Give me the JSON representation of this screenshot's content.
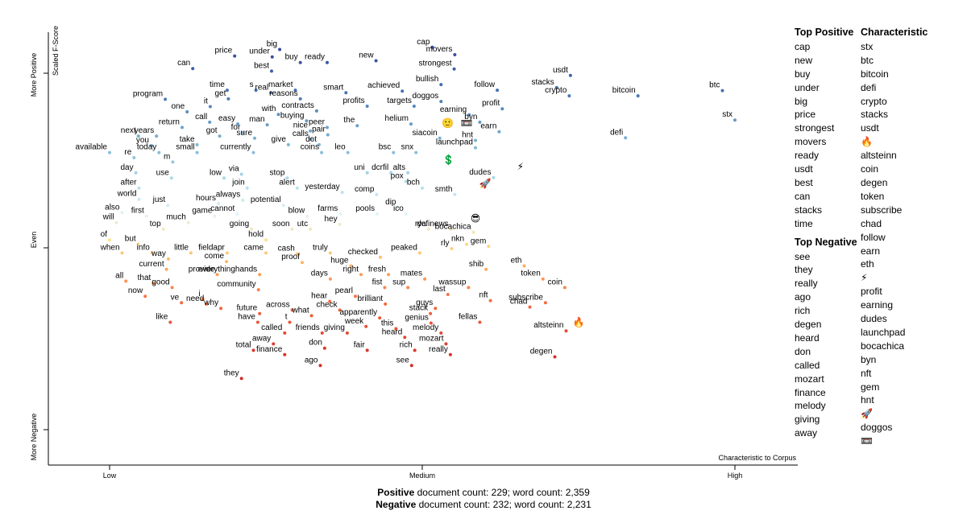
{
  "axes": {
    "y_title": "Scaled F-Score",
    "y_top": "More Positive",
    "y_mid": "Even",
    "y_bottom": "More Negative",
    "x_ticks": [
      "Low",
      "Medium",
      "High"
    ],
    "x_title": "Characteristic to Corpus"
  },
  "sidebar": {
    "pos_header": "Top Positive",
    "pos_terms": [
      "cap",
      "new",
      "buy",
      "under",
      "big",
      "price",
      "strongest",
      "movers",
      "ready",
      "usdt",
      "best",
      "can",
      "stacks",
      "time"
    ],
    "neg_header": "Top Negative",
    "neg_terms": [
      "see",
      "they",
      "really",
      "ago",
      "rich",
      "degen",
      "heard",
      "don",
      "called",
      "mozart",
      "finance",
      "melody",
      "giving",
      "away"
    ],
    "char_header": "Characteristic",
    "char_terms": [
      "stx",
      "btc",
      "bitcoin",
      "defi",
      "crypto",
      "stacks",
      "usdt",
      "🔥",
      "altsteinn",
      "coin",
      "degen",
      "token",
      "subscribe",
      "chad",
      "follow",
      "earn",
      "eth",
      "⚡",
      "profit",
      "earning",
      "dudes",
      "launchpad",
      "bocachica",
      "byn",
      "nft",
      "gem",
      "hnt",
      "🚀",
      "doggos",
      "📼"
    ]
  },
  "counts": {
    "pos_label": "Positive",
    "pos_text": " document count: 229; word count: 2,359",
    "neg_label": "Negative",
    "neg_text": " document count: 232; word count: 2,231"
  },
  "chart_data": {
    "type": "scatter",
    "xlabel": "Characteristic to Corpus",
    "ylabel": "Scaled F-Score",
    "x_range": [
      0,
      1
    ],
    "y_range": [
      0,
      1
    ],
    "x_ticks": {
      "Low": 0.0,
      "Medium": 0.5,
      "High": 1.0
    },
    "y_ticks": {
      "More Negative": 0.05,
      "Even": 0.5,
      "More Positive": 0.95
    },
    "terms": [
      {
        "t": "cap",
        "x": 0.516,
        "y": 0.965
      },
      {
        "t": "movers",
        "x": 0.552,
        "y": 0.948
      },
      {
        "t": "big",
        "x": 0.272,
        "y": 0.96
      },
      {
        "t": "price",
        "x": 0.2,
        "y": 0.945
      },
      {
        "t": "under",
        "x": 0.26,
        "y": 0.943
      },
      {
        "t": "buy",
        "x": 0.305,
        "y": 0.93
      },
      {
        "t": "ready",
        "x": 0.348,
        "y": 0.93
      },
      {
        "t": "new",
        "x": 0.426,
        "y": 0.934
      },
      {
        "t": "strongest",
        "x": 0.551,
        "y": 0.915
      },
      {
        "t": "can",
        "x": 0.133,
        "y": 0.916
      },
      {
        "t": "best",
        "x": 0.259,
        "y": 0.91
      },
      {
        "t": "usdt",
        "x": 0.737,
        "y": 0.9
      },
      {
        "t": "btc",
        "x": 0.98,
        "y": 0.865
      },
      {
        "t": "time",
        "x": 0.188,
        "y": 0.866
      },
      {
        "t": "s",
        "x": 0.234,
        "y": 0.866
      },
      {
        "t": "real",
        "x": 0.258,
        "y": 0.86
      },
      {
        "t": "market",
        "x": 0.297,
        "y": 0.866
      },
      {
        "t": "smart",
        "x": 0.378,
        "y": 0.86
      },
      {
        "t": "achieved",
        "x": 0.468,
        "y": 0.864
      },
      {
        "t": "bullish",
        "x": 0.53,
        "y": 0.879
      },
      {
        "t": "follow",
        "x": 0.62,
        "y": 0.866
      },
      {
        "t": "stacks",
        "x": 0.715,
        "y": 0.872
      },
      {
        "t": "bitcoin",
        "x": 0.845,
        "y": 0.853
      },
      {
        "t": "crypto",
        "x": 0.735,
        "y": 0.853
      },
      {
        "t": "program",
        "x": 0.089,
        "y": 0.845
      },
      {
        "t": "get",
        "x": 0.19,
        "y": 0.846
      },
      {
        "t": "reasons",
        "x": 0.305,
        "y": 0.846
      },
      {
        "t": "doggos",
        "x": 0.53,
        "y": 0.84
      },
      {
        "t": "it",
        "x": 0.161,
        "y": 0.828
      },
      {
        "t": "profits",
        "x": 0.412,
        "y": 0.829
      },
      {
        "t": "targets",
        "x": 0.487,
        "y": 0.829
      },
      {
        "t": "profit",
        "x": 0.628,
        "y": 0.823
      },
      {
        "t": "one",
        "x": 0.124,
        "y": 0.816
      },
      {
        "t": "contracts",
        "x": 0.331,
        "y": 0.818
      },
      {
        "t": "with",
        "x": 0.27,
        "y": 0.81
      },
      {
        "t": "earning",
        "x": 0.575,
        "y": 0.809
      },
      {
        "t": "call",
        "x": 0.16,
        "y": 0.792
      },
      {
        "t": "easy",
        "x": 0.205,
        "y": 0.788
      },
      {
        "t": "man",
        "x": 0.252,
        "y": 0.786
      },
      {
        "t": "buying",
        "x": 0.315,
        "y": 0.795
      },
      {
        "t": "the",
        "x": 0.396,
        "y": 0.784
      },
      {
        "t": "helium",
        "x": 0.482,
        "y": 0.788
      },
      {
        "t": "byn",
        "x": 0.592,
        "y": 0.792
      },
      {
        "t": "return",
        "x": 0.116,
        "y": 0.78
      },
      {
        "t": "peer",
        "x": 0.348,
        "y": 0.78
      },
      {
        "t": "nice",
        "x": 0.321,
        "y": 0.772
      },
      {
        "t": "earn",
        "x": 0.623,
        "y": 0.77
      },
      {
        "t": "for",
        "x": 0.213,
        "y": 0.768
      },
      {
        "t": "pair",
        "x": 0.349,
        "y": 0.763
      },
      {
        "t": "next",
        "x": 0.046,
        "y": 0.76
      },
      {
        "t": "years",
        "x": 0.075,
        "y": 0.76
      },
      {
        "t": "got",
        "x": 0.176,
        "y": 0.76
      },
      {
        "t": "sure",
        "x": 0.232,
        "y": 0.755
      },
      {
        "t": "calls",
        "x": 0.322,
        "y": 0.753
      },
      {
        "t": "siacoin",
        "x": 0.528,
        "y": 0.755
      },
      {
        "t": "hnt",
        "x": 0.585,
        "y": 0.75
      },
      {
        "t": "defi",
        "x": 0.825,
        "y": 0.756
      },
      {
        "t": "stx",
        "x": 1.0,
        "y": 0.797
      },
      {
        "t": "you",
        "x": 0.067,
        "y": 0.738
      },
      {
        "t": "take",
        "x": 0.14,
        "y": 0.74
      },
      {
        "t": "give",
        "x": 0.286,
        "y": 0.74
      },
      {
        "t": "dot",
        "x": 0.335,
        "y": 0.74
      },
      {
        "t": "launchpad",
        "x": 0.585,
        "y": 0.733
      },
      {
        "t": "available",
        "x": 0.0,
        "y": 0.722
      },
      {
        "t": "today",
        "x": 0.079,
        "y": 0.722
      },
      {
        "t": "small",
        "x": 0.14,
        "y": 0.722
      },
      {
        "t": "currently",
        "x": 0.23,
        "y": 0.722
      },
      {
        "t": "coins",
        "x": 0.339,
        "y": 0.722
      },
      {
        "t": "leo",
        "x": 0.381,
        "y": 0.722
      },
      {
        "t": "bsc",
        "x": 0.454,
        "y": 0.722
      },
      {
        "t": "snx",
        "x": 0.49,
        "y": 0.722
      },
      {
        "t": "re",
        "x": 0.039,
        "y": 0.71
      },
      {
        "t": "m",
        "x": 0.101,
        "y": 0.7
      },
      {
        "t": "day",
        "x": 0.042,
        "y": 0.675
      },
      {
        "t": "via",
        "x": 0.211,
        "y": 0.672
      },
      {
        "t": "uni",
        "x": 0.412,
        "y": 0.675
      },
      {
        "t": "dcrfil",
        "x": 0.45,
        "y": 0.675
      },
      {
        "t": "alts",
        "x": 0.477,
        "y": 0.675
      },
      {
        "t": "dudes",
        "x": 0.614,
        "y": 0.664
      },
      {
        "t": "use",
        "x": 0.099,
        "y": 0.663
      },
      {
        "t": "low",
        "x": 0.183,
        "y": 0.663
      },
      {
        "t": "stop",
        "x": 0.284,
        "y": 0.663
      },
      {
        "t": "pox",
        "x": 0.474,
        "y": 0.655
      },
      {
        "t": "bch",
        "x": 0.5,
        "y": 0.64
      },
      {
        "t": "after",
        "x": 0.047,
        "y": 0.64
      },
      {
        "t": "join",
        "x": 0.22,
        "y": 0.64
      },
      {
        "t": "alert",
        "x": 0.3,
        "y": 0.64
      },
      {
        "t": "yesterday",
        "x": 0.372,
        "y": 0.63
      },
      {
        "t": "comp",
        "x": 0.427,
        "y": 0.625
      },
      {
        "t": "smth",
        "x": 0.552,
        "y": 0.625
      },
      {
        "t": "world",
        "x": 0.047,
        "y": 0.614
      },
      {
        "t": "always",
        "x": 0.213,
        "y": 0.612
      },
      {
        "t": "just",
        "x": 0.093,
        "y": 0.6
      },
      {
        "t": "hours",
        "x": 0.174,
        "y": 0.604
      },
      {
        "t": "potential",
        "x": 0.278,
        "y": 0.6
      },
      {
        "t": "dip",
        "x": 0.462,
        "y": 0.595
      },
      {
        "t": "also",
        "x": 0.02,
        "y": 0.583
      },
      {
        "t": "cannot",
        "x": 0.204,
        "y": 0.58
      },
      {
        "t": "farms",
        "x": 0.369,
        "y": 0.58
      },
      {
        "t": "pools",
        "x": 0.428,
        "y": 0.58
      },
      {
        "t": "ico",
        "x": 0.474,
        "y": 0.58
      },
      {
        "t": "first",
        "x": 0.059,
        "y": 0.575
      },
      {
        "t": "game",
        "x": 0.168,
        "y": 0.575
      },
      {
        "t": "blow",
        "x": 0.316,
        "y": 0.575
      },
      {
        "t": "will",
        "x": 0.011,
        "y": 0.56
      },
      {
        "t": "much",
        "x": 0.126,
        "y": 0.56
      },
      {
        "t": "hey",
        "x": 0.368,
        "y": 0.556
      },
      {
        "t": "top",
        "x": 0.086,
        "y": 0.545
      },
      {
        "t": "going",
        "x": 0.227,
        "y": 0.545
      },
      {
        "t": "soon",
        "x": 0.292,
        "y": 0.545
      },
      {
        "t": "utc",
        "x": 0.321,
        "y": 0.545
      },
      {
        "t": "rya",
        "x": 0.51,
        "y": 0.545
      },
      {
        "t": "definews",
        "x": 0.546,
        "y": 0.545
      },
      {
        "t": "bocachica",
        "x": 0.582,
        "y": 0.538
      },
      {
        "t": "hold",
        "x": 0.25,
        "y": 0.52
      },
      {
        "t": "of",
        "x": 0.0,
        "y": 0.52
      },
      {
        "t": "but",
        "x": 0.046,
        "y": 0.51
      },
      {
        "t": "nkn",
        "x": 0.571,
        "y": 0.51
      },
      {
        "t": "gem",
        "x": 0.606,
        "y": 0.505
      },
      {
        "t": "rly",
        "x": 0.547,
        "y": 0.5
      },
      {
        "t": "when",
        "x": 0.02,
        "y": 0.49
      },
      {
        "t": "info",
        "x": 0.068,
        "y": 0.49
      },
      {
        "t": "little",
        "x": 0.13,
        "y": 0.49
      },
      {
        "t": "fieldapr",
        "x": 0.188,
        "y": 0.49
      },
      {
        "t": "came",
        "x": 0.25,
        "y": 0.49
      },
      {
        "t": "cash",
        "x": 0.3,
        "y": 0.488
      },
      {
        "t": "truly",
        "x": 0.353,
        "y": 0.49
      },
      {
        "t": "peaked",
        "x": 0.496,
        "y": 0.49
      },
      {
        "t": "way",
        "x": 0.094,
        "y": 0.476
      },
      {
        "t": "come",
        "x": 0.187,
        "y": 0.47
      },
      {
        "t": "checked",
        "x": 0.433,
        "y": 0.48
      },
      {
        "t": "proof",
        "x": 0.308,
        "y": 0.468
      },
      {
        "t": "huge",
        "x": 0.386,
        "y": 0.46
      },
      {
        "t": "current",
        "x": 0.091,
        "y": 0.452
      },
      {
        "t": "shib",
        "x": 0.602,
        "y": 0.452
      },
      {
        "t": "eth",
        "x": 0.663,
        "y": 0.46
      },
      {
        "t": "provide",
        "x": 0.172,
        "y": 0.44
      },
      {
        "t": "everythinghands",
        "x": 0.24,
        "y": 0.44
      },
      {
        "t": "right",
        "x": 0.402,
        "y": 0.44
      },
      {
        "t": "fresh",
        "x": 0.446,
        "y": 0.44
      },
      {
        "t": "days",
        "x": 0.353,
        "y": 0.43
      },
      {
        "t": "mates",
        "x": 0.504,
        "y": 0.43
      },
      {
        "t": "token",
        "x": 0.693,
        "y": 0.43
      },
      {
        "t": "all",
        "x": 0.026,
        "y": 0.425
      },
      {
        "t": "that",
        "x": 0.07,
        "y": 0.42
      },
      {
        "t": "good",
        "x": 0.1,
        "y": 0.41
      },
      {
        "t": "fist",
        "x": 0.44,
        "y": 0.41
      },
      {
        "t": "sup",
        "x": 0.477,
        "y": 0.41
      },
      {
        "t": "wassup",
        "x": 0.574,
        "y": 0.41
      },
      {
        "t": "coin",
        "x": 0.728,
        "y": 0.41
      },
      {
        "t": "community",
        "x": 0.238,
        "y": 0.405
      },
      {
        "t": "last",
        "x": 0.541,
        "y": 0.394
      },
      {
        "t": "pearl",
        "x": 0.393,
        "y": 0.39
      },
      {
        "t": "now",
        "x": 0.057,
        "y": 0.39
      },
      {
        "t": "i",
        "x": 0.149,
        "y": 0.383
      },
      {
        "t": "hear",
        "x": 0.352,
        "y": 0.378
      },
      {
        "t": "nft",
        "x": 0.609,
        "y": 0.38
      },
      {
        "t": "subscribe",
        "x": 0.697,
        "y": 0.375
      },
      {
        "t": "ve",
        "x": 0.115,
        "y": 0.375
      },
      {
        "t": "need",
        "x": 0.155,
        "y": 0.372
      },
      {
        "t": "brilliant",
        "x": 0.441,
        "y": 0.372
      },
      {
        "t": "chad",
        "x": 0.672,
        "y": 0.365
      },
      {
        "t": "why",
        "x": 0.178,
        "y": 0.362
      },
      {
        "t": "guys",
        "x": 0.521,
        "y": 0.362
      },
      {
        "t": "across",
        "x": 0.292,
        "y": 0.358
      },
      {
        "t": "check",
        "x": 0.368,
        "y": 0.358
      },
      {
        "t": "future",
        "x": 0.24,
        "y": 0.35
      },
      {
        "t": "stack",
        "x": 0.513,
        "y": 0.35
      },
      {
        "t": "what",
        "x": 0.323,
        "y": 0.345
      },
      {
        "t": "apparently",
        "x": 0.432,
        "y": 0.34
      },
      {
        "t": "like",
        "x": 0.097,
        "y": 0.33
      },
      {
        "t": "have",
        "x": 0.237,
        "y": 0.33
      },
      {
        "t": "t",
        "x": 0.288,
        "y": 0.33
      },
      {
        "t": "fellas",
        "x": 0.592,
        "y": 0.33
      },
      {
        "t": "genius",
        "x": 0.514,
        "y": 0.328
      },
      {
        "t": "week",
        "x": 0.41,
        "y": 0.32
      },
      {
        "t": "this",
        "x": 0.458,
        "y": 0.315
      },
      {
        "t": "altsteinn",
        "x": 0.73,
        "y": 0.31
      },
      {
        "t": "called",
        "x": 0.28,
        "y": 0.305
      },
      {
        "t": "friends",
        "x": 0.34,
        "y": 0.305
      },
      {
        "t": "giving",
        "x": 0.38,
        "y": 0.305
      },
      {
        "t": "melody",
        "x": 0.53,
        "y": 0.305
      },
      {
        "t": "heard",
        "x": 0.472,
        "y": 0.295
      },
      {
        "t": "away",
        "x": 0.262,
        "y": 0.28
      },
      {
        "t": "mozart",
        "x": 0.538,
        "y": 0.28
      },
      {
        "t": "total",
        "x": 0.23,
        "y": 0.265
      },
      {
        "t": "don",
        "x": 0.344,
        "y": 0.27
      },
      {
        "t": "fair",
        "x": 0.412,
        "y": 0.265
      },
      {
        "t": "rich",
        "x": 0.488,
        "y": 0.265
      },
      {
        "t": "finance",
        "x": 0.28,
        "y": 0.255
      },
      {
        "t": "really",
        "x": 0.545,
        "y": 0.255
      },
      {
        "t": "degen",
        "x": 0.712,
        "y": 0.25
      },
      {
        "t": "ago",
        "x": 0.337,
        "y": 0.23
      },
      {
        "t": "see",
        "x": 0.483,
        "y": 0.23
      },
      {
        "t": "they",
        "x": 0.211,
        "y": 0.2
      }
    ],
    "emoji_points": [
      {
        "t": "🙂",
        "x": 0.541,
        "y": 0.79
      },
      {
        "t": "📼",
        "x": 0.571,
        "y": 0.79
      },
      {
        "t": "💲",
        "x": 0.542,
        "y": 0.705
      },
      {
        "t": "⚡",
        "x": 0.657,
        "y": 0.69
      },
      {
        "t": "🚀",
        "x": 0.601,
        "y": 0.651
      },
      {
        "t": "😎",
        "x": 0.585,
        "y": 0.57
      },
      {
        "t": "🔥",
        "x": 0.75,
        "y": 0.33
      }
    ]
  }
}
